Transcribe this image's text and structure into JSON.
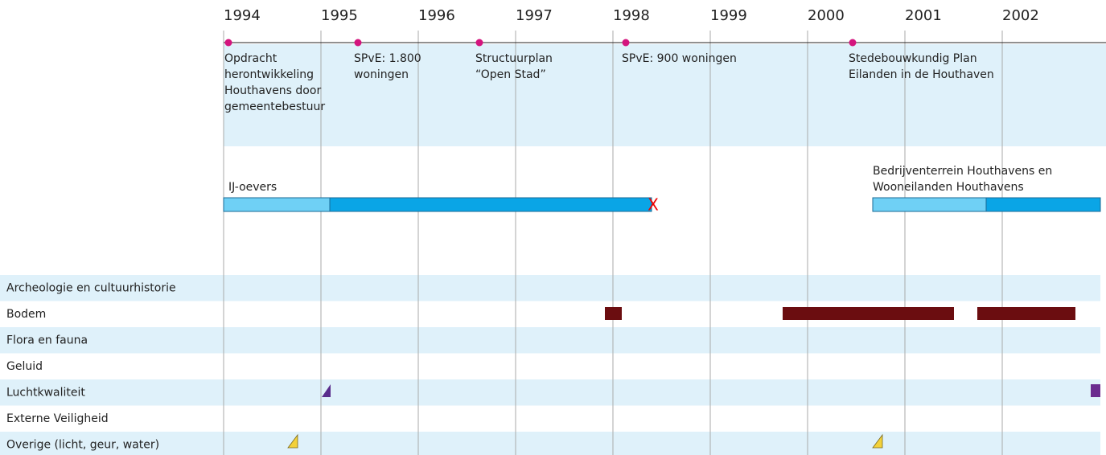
{
  "years": [
    "1994",
    "1995",
    "1996",
    "1997",
    "1998",
    "1999",
    "2000",
    "2001",
    "2002"
  ],
  "milestones": [
    {
      "lines": [
        "Opdracht",
        "herontwikkeling",
        "Houthavens door",
        "gemeentebestuur"
      ]
    },
    {
      "lines": [
        "SPvE: 1.800",
        "woningen"
      ]
    },
    {
      "lines": [
        "Structuurplan",
        "“Open Stad”"
      ]
    },
    {
      "lines": [
        "SPvE: 900 woningen"
      ]
    },
    {
      "lines": [
        "Stedebouwkundig Plan",
        "Eilanden in de Houthaven"
      ]
    }
  ],
  "projects": [
    {
      "lines": [
        "IJ-oevers"
      ]
    },
    {
      "lines": [
        "Bedrijventerrein Houthavens en",
        "Wooneilanden Houthavens"
      ]
    }
  ],
  "rows": [
    "Archeologie en cultuurhistorie",
    "Bodem",
    "Flora en fauna",
    "Geluid",
    "Luchtkwaliteit",
    "Externe Veiligheid",
    "Overige (licht, geur, water)"
  ]
}
